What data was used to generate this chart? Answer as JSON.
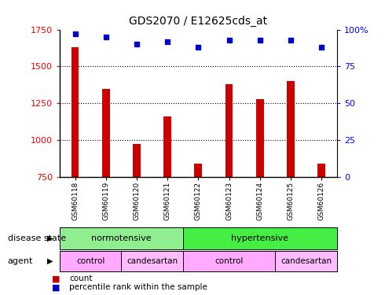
{
  "title": "GDS2070 / E12625cds_at",
  "samples": [
    "GSM60118",
    "GSM60119",
    "GSM60120",
    "GSM60121",
    "GSM60122",
    "GSM60123",
    "GSM60124",
    "GSM60125",
    "GSM60126"
  ],
  "counts": [
    1630,
    1350,
    975,
    1160,
    840,
    1380,
    1280,
    1400,
    840
  ],
  "percentiles": [
    97,
    95,
    90,
    92,
    88,
    93,
    93,
    93,
    88
  ],
  "ylim_left": [
    750,
    1750
  ],
  "ylim_right": [
    0,
    100
  ],
  "yticks_left": [
    750,
    1000,
    1250,
    1500,
    1750
  ],
  "yticks_right": [
    0,
    25,
    50,
    75,
    100
  ],
  "bar_color": "#cc0000",
  "dot_color": "#0000cc",
  "bg_color": "#ffffff",
  "normotensive_color": "#90ee90",
  "hypertensive_color": "#44ee44",
  "control_color": "#ffaaff",
  "candesartan_color": "#ffbbff",
  "label_disease": "disease state",
  "label_agent": "agent",
  "legend_count": "count",
  "legend_pct": "percentile rank within the sample",
  "normotensive_label": "normotensive",
  "hypertensive_label": "hypertensive",
  "control_label": "control",
  "candesartan_label": "candesartan"
}
